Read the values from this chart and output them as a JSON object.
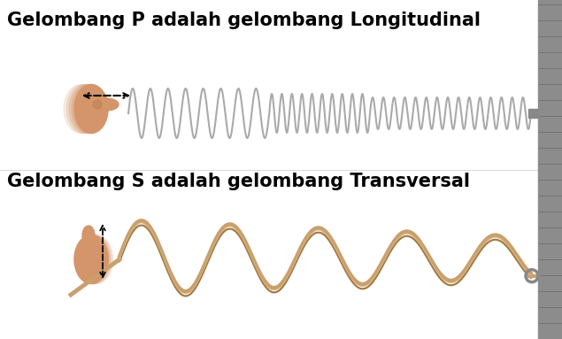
{
  "title1": "Gelombang P adalah gelombang Longitudinal",
  "title2": "Gelombang S adalah gelombang Transversal",
  "title_fontsize": 15,
  "title_fontweight": "bold",
  "bg_color": "#ffffff",
  "wall_color": "#888888",
  "spring_color": "#aaaaaa",
  "rope_color": "#c8a06e",
  "fig_width": 6.35,
  "fig_height": 3.83,
  "dpi": 100
}
